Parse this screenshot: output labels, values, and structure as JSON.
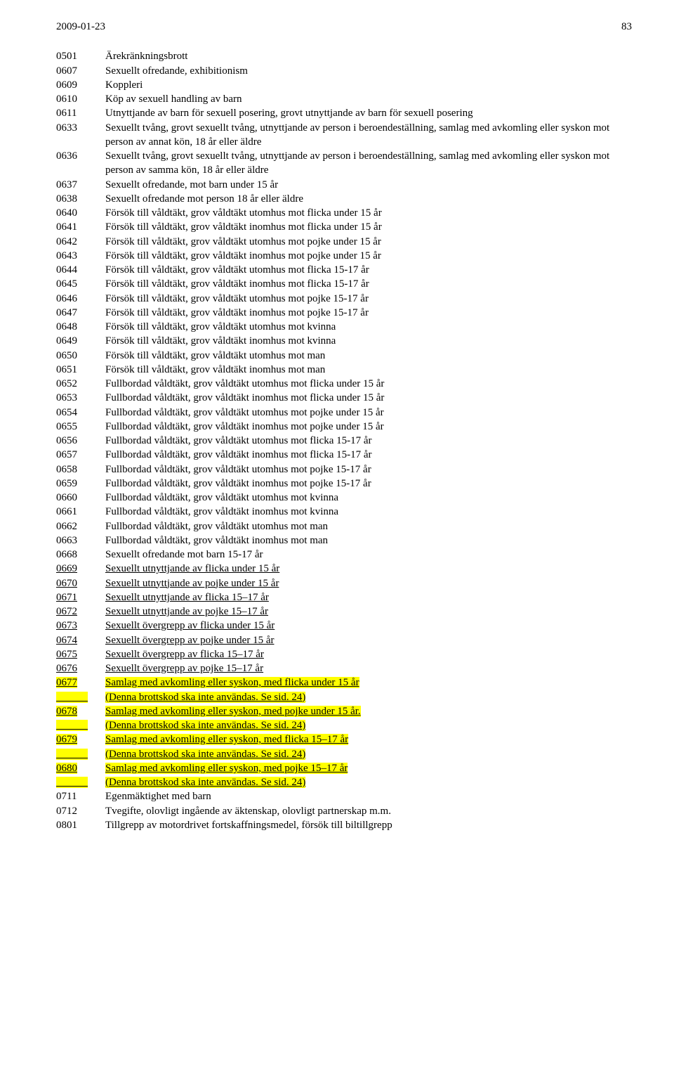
{
  "header": {
    "date": "2009-01-23",
    "page": "83"
  },
  "rows": [
    {
      "code": "0501",
      "desc": "Ärekränkningsbrott"
    },
    {
      "code": "0607",
      "desc": "Sexuellt ofredande, exhibitionism"
    },
    {
      "code": "0609",
      "desc": "Koppleri"
    },
    {
      "code": "0610",
      "desc": "Köp av sexuell handling av barn"
    },
    {
      "code": "0611",
      "desc": "Utnyttjande av barn för sexuell posering, grovt utnyttjande av barn för sexuell posering"
    },
    {
      "code": "0633",
      "desc": "Sexuellt tvång, grovt sexuellt tvång, utnyttjande av person i beroendeställning, samlag med avkomling eller syskon mot person av annat kön, 18 år eller äldre"
    },
    {
      "code": "0636",
      "desc": "Sexuellt tvång, grovt sexuellt tvång, utnyttjande av person i beroendeställning, samlag med avkomling eller syskon mot person av samma kön, 18 år eller äldre"
    },
    {
      "code": "0637",
      "desc": "Sexuellt ofredande, mot barn under 15 år"
    },
    {
      "code": "0638",
      "desc": "Sexuellt ofredande mot person 18 år eller äldre"
    },
    {
      "code": "0640",
      "desc": "Försök till våldtäkt, grov våldtäkt utomhus mot flicka under 15 år"
    },
    {
      "code": "0641",
      "desc": "Försök till våldtäkt, grov våldtäkt inomhus mot flicka under 15 år"
    },
    {
      "code": "0642",
      "desc": "Försök till våldtäkt, grov våldtäkt utomhus mot pojke under 15 år"
    },
    {
      "code": "0643",
      "desc": "Försök till våldtäkt, grov våldtäkt inomhus mot pojke under 15 år"
    },
    {
      "code": "0644",
      "desc": "Försök till våldtäkt, grov våldtäkt utomhus mot flicka 15-17 år"
    },
    {
      "code": "0645",
      "desc": "Försök till våldtäkt, grov våldtäkt inomhus mot flicka 15-17 år"
    },
    {
      "code": "0646",
      "desc": "Försök till våldtäkt, grov våldtäkt utomhus mot pojke 15-17 år"
    },
    {
      "code": "0647",
      "desc": "Försök till våldtäkt, grov våldtäkt inomhus mot pojke 15-17 år"
    },
    {
      "code": "0648",
      "desc": "Försök till våldtäkt, grov våldtäkt utomhus mot kvinna"
    },
    {
      "code": "0649",
      "desc": "Försök till våldtäkt, grov våldtäkt inomhus mot kvinna"
    },
    {
      "code": "0650",
      "desc": "Försök till våldtäkt, grov våldtäkt utomhus mot man"
    },
    {
      "code": "0651",
      "desc": "Försök till våldtäkt, grov våldtäkt inomhus mot man"
    },
    {
      "code": "0652",
      "desc": "Fullbordad våldtäkt, grov våldtäkt utomhus mot flicka under 15 år"
    },
    {
      "code": "0653",
      "desc": "Fullbordad våldtäkt, grov våldtäkt inomhus mot flicka under 15 år"
    },
    {
      "code": "0654",
      "desc": "Fullbordad våldtäkt, grov våldtäkt utomhus mot pojke under 15 år"
    },
    {
      "code": "0655",
      "desc": "Fullbordad våldtäkt, grov våldtäkt inomhus mot pojke under 15 år"
    },
    {
      "code": "0656",
      "desc": "Fullbordad våldtäkt, grov våldtäkt utomhus mot flicka 15-17 år"
    },
    {
      "code": "0657",
      "desc": "Fullbordad våldtäkt, grov våldtäkt inomhus mot flicka 15-17 år"
    },
    {
      "code": "0658",
      "desc": "Fullbordad våldtäkt, grov våldtäkt utomhus mot pojke 15-17 år"
    },
    {
      "code": "0659",
      "desc": "Fullbordad våldtäkt, grov våldtäkt inomhus mot pojke 15-17 år"
    },
    {
      "code": "0660",
      "desc": "Fullbordad våldtäkt, grov våldtäkt utomhus mot kvinna"
    },
    {
      "code": "0661",
      "desc": "Fullbordad våldtäkt, grov våldtäkt inomhus mot kvinna"
    },
    {
      "code": "0662",
      "desc": "Fullbordad våldtäkt, grov våldtäkt utomhus mot man"
    },
    {
      "code": "0663",
      "desc": "Fullbordad våldtäkt, grov våldtäkt inomhus mot man"
    },
    {
      "code": "0668",
      "desc": "Sexuellt ofredande mot barn 15-17 år"
    },
    {
      "code": "0669",
      "desc": "Sexuellt utnyttjande av flicka under 15 år",
      "underline": true
    },
    {
      "code": "0670",
      "desc": "Sexuellt utnyttjande av pojke under 15 år",
      "underline": true
    },
    {
      "code": "0671",
      "desc": "Sexuellt utnyttjande av flicka 15–17 år",
      "underline": true
    },
    {
      "code": "0672",
      "desc": "Sexuellt utnyttjande av pojke 15–17 år",
      "underline": true
    },
    {
      "code": "0673",
      "desc": "Sexuellt övergrepp av flicka under 15 år",
      "underline": true
    },
    {
      "code": "0674",
      "desc": "Sexuellt övergrepp av pojke under 15 år",
      "underline": true
    },
    {
      "code": "0675",
      "desc": "Sexuellt övergrepp av flicka 15–17 år",
      "underline": true
    },
    {
      "code": "0676",
      "desc": "Sexuellt övergrepp av pojke 15–17 år",
      "underline": true
    },
    {
      "code": "0677",
      "desc": "Samlag med avkomling eller syskon, med flicka under 15 år",
      "underline": true,
      "highlight": true,
      "note": "(Denna brottskod ska inte användas. Se sid. 24)"
    },
    {
      "code": "0678",
      "desc": "Samlag med avkomling eller syskon, med pojke under 15 år.",
      "underline": true,
      "highlight": true,
      "note": "(Denna brottskod ska inte användas. Se sid. 24)"
    },
    {
      "code": "0679",
      "desc": "Samlag med avkomling eller syskon, med flicka 15–17 år",
      "underline": true,
      "highlight": true,
      "note": "(Denna brottskod ska inte användas. Se sid. 24)"
    },
    {
      "code": "0680",
      "desc": "Samlag med avkomling eller syskon, med pojke 15–17 år",
      "underline": true,
      "highlight": true,
      "note": "(Denna brottskod ska inte användas. Se sid. 24)"
    },
    {
      "code": "0711",
      "desc": "Egenmäktighet med barn"
    },
    {
      "code": "0712",
      "desc": "Tvegifte, olovligt ingående av äktenskap, olovligt partnerskap m.m."
    },
    {
      "code": "0801",
      "desc": "Tillgrepp av motordrivet fortskaffningsmedel, försök till biltillgrepp"
    }
  ]
}
